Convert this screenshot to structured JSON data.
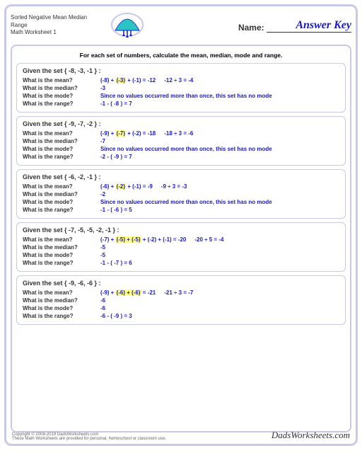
{
  "header": {
    "title_line1": "Sorted Negative Mean Median Range",
    "title_line2": "Math Worksheet 1",
    "name_label": "Name:",
    "answer_key": "Answer Key"
  },
  "logo": {
    "fill": "#2bc4c4",
    "stroke": "#1818cc"
  },
  "instruction": "For each set of numbers, calculate the mean, median, mode and range.",
  "labels": {
    "mean": "What is the mean?",
    "median": "What is the median?",
    "mode": "What is the mode?",
    "range": "What is the range?"
  },
  "no_mode": "Since no values occurred more than once, this set has no mode",
  "problems": [
    {
      "given": "Given the set { -8, -3, -1 } :",
      "mean_pre": "(-8) + ",
      "mean_hl": "(-3)",
      "mean_post": " + (-1) = -12",
      "mean_calc": "-12 ÷ 3 = -4",
      "median": "-3",
      "mode": "",
      "range": "-1 - ( -8 ) = 7"
    },
    {
      "given": "Given the set { -9, -7, -2 } :",
      "mean_pre": "(-9) + ",
      "mean_hl": "(-7)",
      "mean_post": " + (-2) = -18",
      "mean_calc": "-18 ÷ 3 = -6",
      "median": "-7",
      "mode": "",
      "range": "-2 - ( -9 ) = 7"
    },
    {
      "given": "Given the set { -6, -2, -1 } :",
      "mean_pre": "(-6) + ",
      "mean_hl": "(-2)",
      "mean_post": " + (-1) = -9",
      "mean_calc": "-9 ÷ 3 = -3",
      "median": "-2",
      "mode": "",
      "range": "-1 - ( -6 ) = 5"
    },
    {
      "given": "Given the set { -7, -5, -5, -2, -1 } :",
      "mean_pre": "(-7) + ",
      "mean_hl": "(-5) + (-5)",
      "mean_post": " + (-2) + (-1) = -20",
      "mean_calc": "-20 ÷ 5 = -4",
      "median": "-5",
      "mode": "-5",
      "range": "-1 - ( -7 ) = 6"
    },
    {
      "given": "Given the set { -9, -6, -6 } :",
      "mean_pre": "(-9) + ",
      "mean_hl": "(-6) + (-6)",
      "mean_post": " = -21",
      "mean_calc": "-21 ÷ 3 = -7",
      "median": "-6",
      "mode": "-6",
      "range": "-6 - ( -9 ) = 3"
    }
  ],
  "footer": {
    "copyright": "Copyright © 2008-2019 DadsWorksheets.com",
    "note": "These Math Worksheets are provided for personal, homeschool or classroom use.",
    "brand": "DadsWorksheets.com"
  },
  "colors": {
    "border": "#c8c8e8",
    "answer": "#1818cc",
    "highlight": "#ffff88"
  }
}
